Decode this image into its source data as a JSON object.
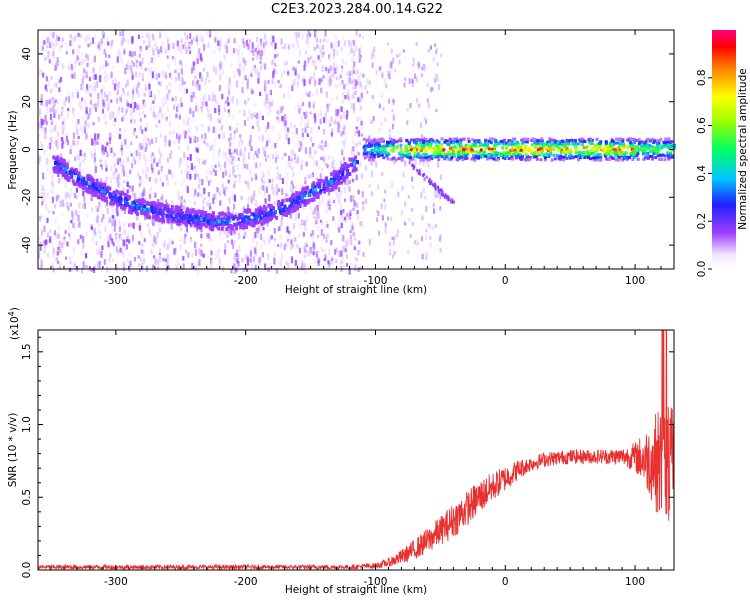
{
  "title": "C2E3.2023.284.00.14.G22",
  "chart_data": [
    {
      "type": "heatmap",
      "xlabel": "Height of straight line (km)",
      "ylabel": "Frequency (Hz)",
      "xlim": [
        -360,
        130
      ],
      "ylim": [
        -50,
        50
      ],
      "xticks": [
        -300,
        -200,
        -100,
        0,
        100
      ],
      "xtick_labels": [
        "-300",
        "-200",
        "-100",
        "0",
        "100"
      ],
      "yticks": [
        -40,
        -20,
        0,
        20,
        40
      ],
      "ytick_labels": [
        "-40",
        "-20",
        "0",
        "20",
        "40"
      ],
      "colorbar": {
        "label": "Normalized spectral amplitude",
        "range": [
          0,
          1
        ],
        "ticks": [
          0.0,
          0.2,
          0.4,
          0.6,
          0.8
        ],
        "tick_labels": [
          "0.0",
          "0.2",
          "0.4",
          "0.6",
          "0.8"
        ],
        "colormap": "rainbow (white-violet-blue-cyan-green-yellow-red-magenta)"
      },
      "features": {
        "noise_region_x": [
          -360,
          -110
        ],
        "doppler_track": {
          "x": [
            -350,
            -330,
            -310,
            -290,
            -270,
            -250,
            -230,
            -210,
            -190,
            -170,
            -150,
            -130,
            -115
          ],
          "y": [
            -5,
            -12,
            -18,
            -23,
            -26,
            -28,
            -30,
            -30,
            -28,
            -24,
            -18,
            -12,
            -5
          ],
          "peak_amplitude": 0.4
        },
        "carrier_line": {
          "x": [
            -110,
            130
          ],
          "y": [
            0,
            0
          ],
          "peak_amplitude": 0.95
        },
        "faint_spur": {
          "x": [
            -75,
            -40
          ],
          "y": [
            -5,
            -22
          ]
        }
      },
      "grid": false
    },
    {
      "type": "line",
      "xlabel": "Height of straight line (km)",
      "ylabel": "SNR (10 * v/v)",
      "y_multiplier_label": "(x10",
      "y_multiplier_exp": "4",
      "y_multiplier_close": ")",
      "xlim": [
        -360,
        130
      ],
      "ylim": [
        0,
        1.65
      ],
      "xticks": [
        -300,
        -200,
        -100,
        0,
        100
      ],
      "xtick_labels": [
        "-300",
        "-200",
        "-100",
        "0",
        "100"
      ],
      "yticks": [
        0.0,
        0.5,
        1.0,
        1.5
      ],
      "ytick_labels": [
        "0.0",
        "0.5",
        "1.0",
        "1.5"
      ],
      "color": "#e83030",
      "envelope": {
        "x": [
          -360,
          -120,
          -100,
          -90,
          -80,
          -70,
          -60,
          -50,
          -40,
          -30,
          -20,
          -10,
          0,
          10,
          20,
          30,
          50,
          70,
          90,
          100,
          108,
          115,
          122,
          130
        ],
        "mean": [
          0.02,
          0.02,
          0.03,
          0.05,
          0.09,
          0.14,
          0.2,
          0.27,
          0.34,
          0.42,
          0.5,
          0.57,
          0.63,
          0.69,
          0.73,
          0.76,
          0.78,
          0.78,
          0.78,
          0.78,
          0.76,
          0.75,
          0.72,
          0.7
        ],
        "spread": [
          0.015,
          0.015,
          0.02,
          0.03,
          0.05,
          0.07,
          0.09,
          0.1,
          0.12,
          0.12,
          0.12,
          0.1,
          0.09,
          0.07,
          0.05,
          0.05,
          0.05,
          0.05,
          0.06,
          0.1,
          0.2,
          0.32,
          0.45,
          0.4
        ]
      },
      "max_value": 1.65,
      "grid": false
    }
  ]
}
